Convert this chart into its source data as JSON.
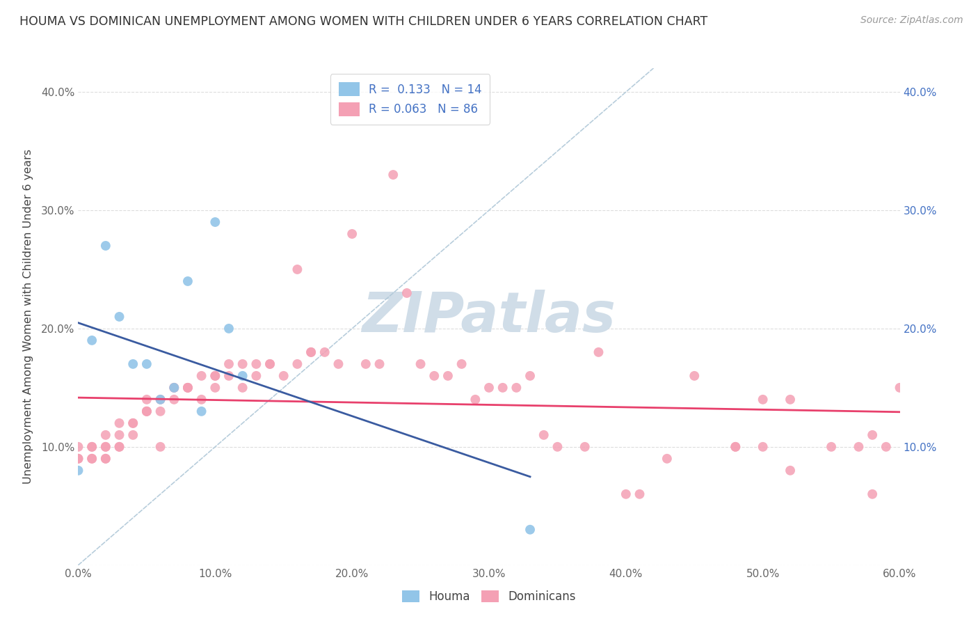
{
  "title": "HOUMA VS DOMINICAN UNEMPLOYMENT AMONG WOMEN WITH CHILDREN UNDER 6 YEARS CORRELATION CHART",
  "source": "Source: ZipAtlas.com",
  "ylabel": "Unemployment Among Women with Children Under 6 years",
  "xlim": [
    0.0,
    0.6
  ],
  "ylim": [
    0.0,
    0.42
  ],
  "xticks": [
    0.0,
    0.1,
    0.2,
    0.3,
    0.4,
    0.5,
    0.6
  ],
  "xtick_labels": [
    "0.0%",
    "10.0%",
    "20.0%",
    "30.0%",
    "40.0%",
    "50.0%",
    "60.0%"
  ],
  "yticks": [
    0.0,
    0.1,
    0.2,
    0.3,
    0.4
  ],
  "ytick_labels": [
    "",
    "10.0%",
    "20.0%",
    "30.0%",
    "40.0%"
  ],
  "right_ytick_labels": [
    "10.0%",
    "20.0%",
    "30.0%",
    "40.0%"
  ],
  "houma_R": 0.133,
  "houma_N": 14,
  "dominican_R": 0.063,
  "dominican_N": 86,
  "houma_color": "#92C5E8",
  "dominican_color": "#F4A0B4",
  "houma_line_color": "#3A5BA0",
  "dominican_line_color": "#E8406C",
  "diagonal_color": "#B0C8D8",
  "houma_x": [
    0.0,
    0.01,
    0.02,
    0.03,
    0.04,
    0.05,
    0.06,
    0.07,
    0.08,
    0.09,
    0.1,
    0.11,
    0.12,
    0.33
  ],
  "houma_y": [
    0.08,
    0.19,
    0.27,
    0.21,
    0.17,
    0.17,
    0.14,
    0.15,
    0.24,
    0.13,
    0.29,
    0.2,
    0.16,
    0.03
  ],
  "dominican_x": [
    0.0,
    0.0,
    0.0,
    0.01,
    0.01,
    0.01,
    0.02,
    0.02,
    0.02,
    0.02,
    0.03,
    0.03,
    0.03,
    0.03,
    0.04,
    0.04,
    0.04,
    0.05,
    0.05,
    0.05,
    0.06,
    0.06,
    0.06,
    0.07,
    0.07,
    0.07,
    0.08,
    0.08,
    0.09,
    0.09,
    0.1,
    0.1,
    0.1,
    0.11,
    0.11,
    0.12,
    0.12,
    0.13,
    0.13,
    0.14,
    0.14,
    0.15,
    0.16,
    0.16,
    0.17,
    0.17,
    0.18,
    0.19,
    0.2,
    0.21,
    0.22,
    0.23,
    0.24,
    0.25,
    0.26,
    0.27,
    0.28,
    0.29,
    0.3,
    0.31,
    0.32,
    0.33,
    0.34,
    0.35,
    0.37,
    0.38,
    0.4,
    0.41,
    0.43,
    0.45,
    0.48,
    0.48,
    0.5,
    0.5,
    0.52,
    0.52,
    0.55,
    0.57,
    0.58,
    0.58,
    0.59,
    0.6,
    0.01,
    0.02,
    0.05,
    0.08
  ],
  "dominican_y": [
    0.09,
    0.1,
    0.09,
    0.1,
    0.09,
    0.1,
    0.11,
    0.1,
    0.09,
    0.1,
    0.1,
    0.12,
    0.11,
    0.1,
    0.12,
    0.11,
    0.12,
    0.14,
    0.13,
    0.13,
    0.14,
    0.13,
    0.1,
    0.15,
    0.15,
    0.14,
    0.15,
    0.15,
    0.16,
    0.14,
    0.15,
    0.16,
    0.16,
    0.17,
    0.16,
    0.15,
    0.17,
    0.17,
    0.16,
    0.17,
    0.17,
    0.16,
    0.25,
    0.17,
    0.18,
    0.18,
    0.18,
    0.17,
    0.28,
    0.17,
    0.17,
    0.33,
    0.23,
    0.17,
    0.16,
    0.16,
    0.17,
    0.14,
    0.15,
    0.15,
    0.15,
    0.16,
    0.11,
    0.1,
    0.1,
    0.18,
    0.06,
    0.06,
    0.09,
    0.16,
    0.1,
    0.1,
    0.14,
    0.1,
    0.14,
    0.08,
    0.1,
    0.1,
    0.11,
    0.06,
    0.1,
    0.15,
    0.09,
    0.09,
    0.13,
    0.15
  ],
  "watermark_text": "ZIPatlas",
  "watermark_color": "#D0DDE8",
  "background_color": "#FFFFFF",
  "grid_color": "#DDDDDD"
}
